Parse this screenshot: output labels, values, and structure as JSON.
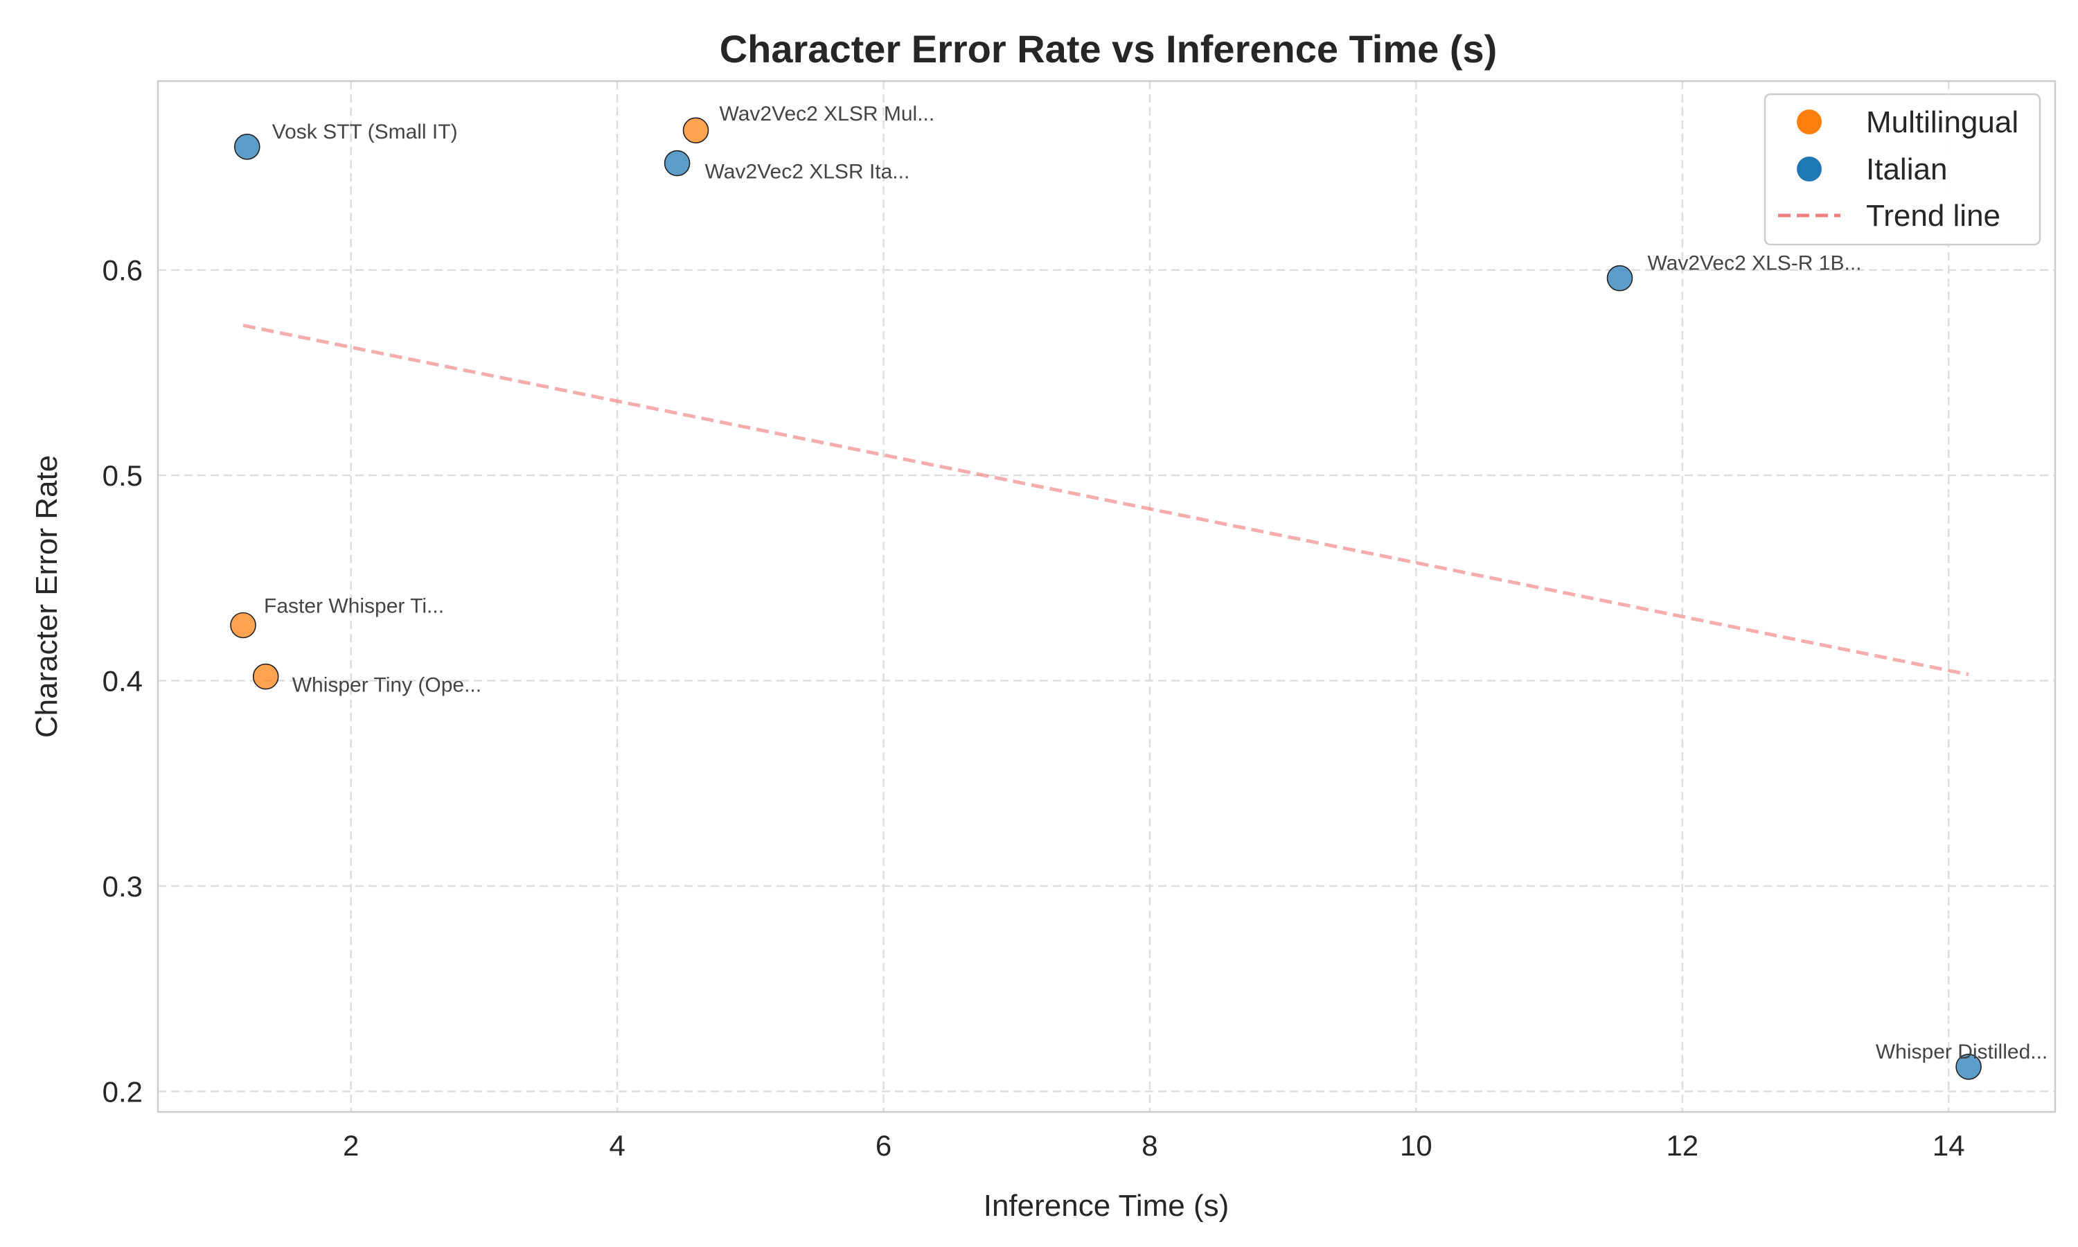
{
  "chart_data": {
    "type": "scatter",
    "title": "Character Error Rate vs Inference Time (s)",
    "xlabel": "Inference Time (s)",
    "ylabel": "Character Error Rate",
    "xlim": [
      0.55,
      14.8
    ],
    "ylim": [
      0.19,
      0.692
    ],
    "xticks": [
      2,
      4,
      6,
      8,
      10,
      12,
      14
    ],
    "yticks": [
      0.2,
      0.3,
      0.4,
      0.5,
      0.6
    ],
    "grid": true,
    "legend_position": "top-right",
    "colors": {
      "Multilingual": "#ff7f0e",
      "Italian": "#1f77b4",
      "trend": "#f08080"
    },
    "legend": [
      "Multilingual",
      "Italian",
      "Trend line"
    ],
    "points": [
      {
        "label": "Vosk STT (Small IT)",
        "x": 1.22,
        "y": 0.66,
        "group": "Italian"
      },
      {
        "label": "Wav2Vec2 XLSR Mul...",
        "x": 4.59,
        "y": 0.668,
        "group": "Multilingual"
      },
      {
        "label": "Wav2Vec2 XLSR Ita...",
        "x": 4.45,
        "y": 0.652,
        "group": "Italian"
      },
      {
        "label": "Wav2Vec2 XLS-R 1B...",
        "x": 11.53,
        "y": 0.596,
        "group": "Italian"
      },
      {
        "label": "Faster Whisper Ti...",
        "x": 1.19,
        "y": 0.427,
        "group": "Multilingual"
      },
      {
        "label": "Whisper Tiny (Ope...",
        "x": 1.36,
        "y": 0.402,
        "group": "Multilingual"
      },
      {
        "label": "Whisper Distilled...",
        "x": 14.15,
        "y": 0.212,
        "group": "Italian"
      }
    ],
    "trend_line": {
      "x": [
        1.19,
        14.15
      ],
      "y": [
        0.573,
        0.403
      ]
    }
  }
}
